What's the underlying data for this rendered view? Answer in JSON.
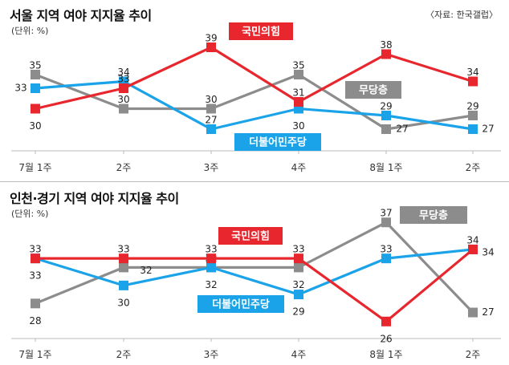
{
  "chart_data": [
    {
      "type": "line",
      "title": "서울 지역 여야 지지율 추이",
      "subtitle": "(단위: %)",
      "source": "〈자료: 한국갤럽〉",
      "categories": [
        "7월 1주",
        "2주",
        "3주",
        "4주",
        "8월 1주",
        "2주"
      ],
      "series": [
        {
          "name": "국민의힘",
          "color": "#e8262d",
          "values": [
            30,
            33,
            39,
            31,
            38,
            34
          ]
        },
        {
          "name": "무당층",
          "color": "#8c8c8c",
          "values": [
            35,
            30,
            30,
            35,
            27,
            29
          ]
        },
        {
          "name": "더불어민주당",
          "color": "#1aa3e8",
          "values": [
            33,
            34,
            27,
            30,
            29,
            27
          ]
        }
      ],
      "ylim": [
        25,
        41
      ]
    },
    {
      "type": "line",
      "title": "인천·경기 지역 여야 지지율 추이",
      "subtitle": "(단위: %)",
      "categories": [
        "7월 1주",
        "2주",
        "3주",
        "4주",
        "8월 1주",
        "2주"
      ],
      "series": [
        {
          "name": "국민의힘",
          "color": "#e8262d",
          "values": [
            33,
            33,
            33,
            33,
            26,
            34
          ]
        },
        {
          "name": "무당층",
          "color": "#8c8c8c",
          "values": [
            28,
            32,
            32,
            32,
            37,
            27
          ]
        },
        {
          "name": "더불어민주당",
          "color": "#1aa3e8",
          "values": [
            33,
            30,
            32,
            29,
            33,
            34
          ]
        }
      ],
      "ylim": [
        25,
        38
      ]
    }
  ]
}
